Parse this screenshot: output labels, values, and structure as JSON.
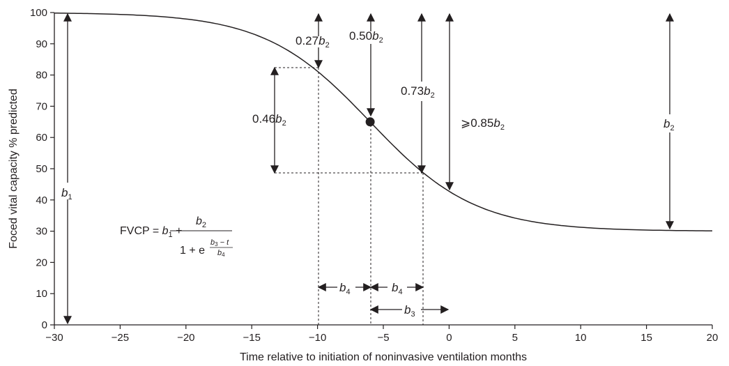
{
  "chart_data": {
    "type": "line",
    "title": "",
    "xlabel": "Time relative to initiation of noninvasive ventilation months",
    "ylabel": "Foced vital capacity % predicted",
    "xlim": [
      -30,
      20
    ],
    "ylim": [
      0,
      100
    ],
    "xticks": [
      "−30",
      "−25",
      "−20",
      "−15",
      "−10",
      "−5",
      "0",
      "5",
      "10",
      "15",
      "20"
    ],
    "yticks": [
      "0",
      "10",
      "20",
      "30",
      "40",
      "50",
      "60",
      "70",
      "80",
      "90",
      "100"
    ],
    "grid": false,
    "series": [
      {
        "model": "logistic",
        "parameters": {
          "b1": 30,
          "b2": 70,
          "b3": -6,
          "b4": 4
        },
        "x": [
          -30,
          -28,
          -26,
          -24,
          -22,
          -20,
          -18,
          -16,
          -14,
          -12,
          -10,
          -9,
          -8,
          -7,
          -6,
          -5,
          -4,
          -3,
          -2,
          -1,
          0,
          2,
          4,
          6,
          8,
          10,
          12,
          14,
          16,
          18,
          20
        ],
        "y": [
          99.9,
          99.8,
          99.6,
          99.3,
          98.7,
          97.8,
          96.2,
          93.5,
          89.1,
          82.4,
          81.3,
          77.9,
          73.5,
          68.6,
          65.0,
          59.7,
          52.5,
          48.0,
          48.6,
          43.5,
          42.3,
          37.1,
          34.0,
          32.2,
          31.3,
          30.6,
          30.3,
          30.2,
          30.1,
          30.0,
          30.0
        ]
      }
    ],
    "highlighted_point": {
      "x": -6,
      "y": 65
    },
    "annotations": {
      "b1": "b",
      "b1_sub": "1",
      "b2": "b",
      "b2_sub": "2",
      "a027_prefix": "0.27",
      "a050_prefix": "0.50",
      "a073_prefix": "0.73",
      "a085_prefix": "⩾0.85",
      "a046_prefix": "0.46",
      "sym_b": "b",
      "sub_2": "2",
      "b4": "b",
      "b4_sub": "4",
      "b3": "b",
      "b3_sub": "3"
    },
    "formula": {
      "lhs": "FVCP = ",
      "b1": "b",
      "b1_sub": "1",
      "plus": " + ",
      "numerator_b": "b",
      "numerator_sub": "2",
      "denominator": "1 + e",
      "exp_num_b": "b",
      "exp_num_sub": "3",
      "exp_num_rest": " − t",
      "exp_den_b": "b",
      "exp_den_sub": "4"
    }
  }
}
